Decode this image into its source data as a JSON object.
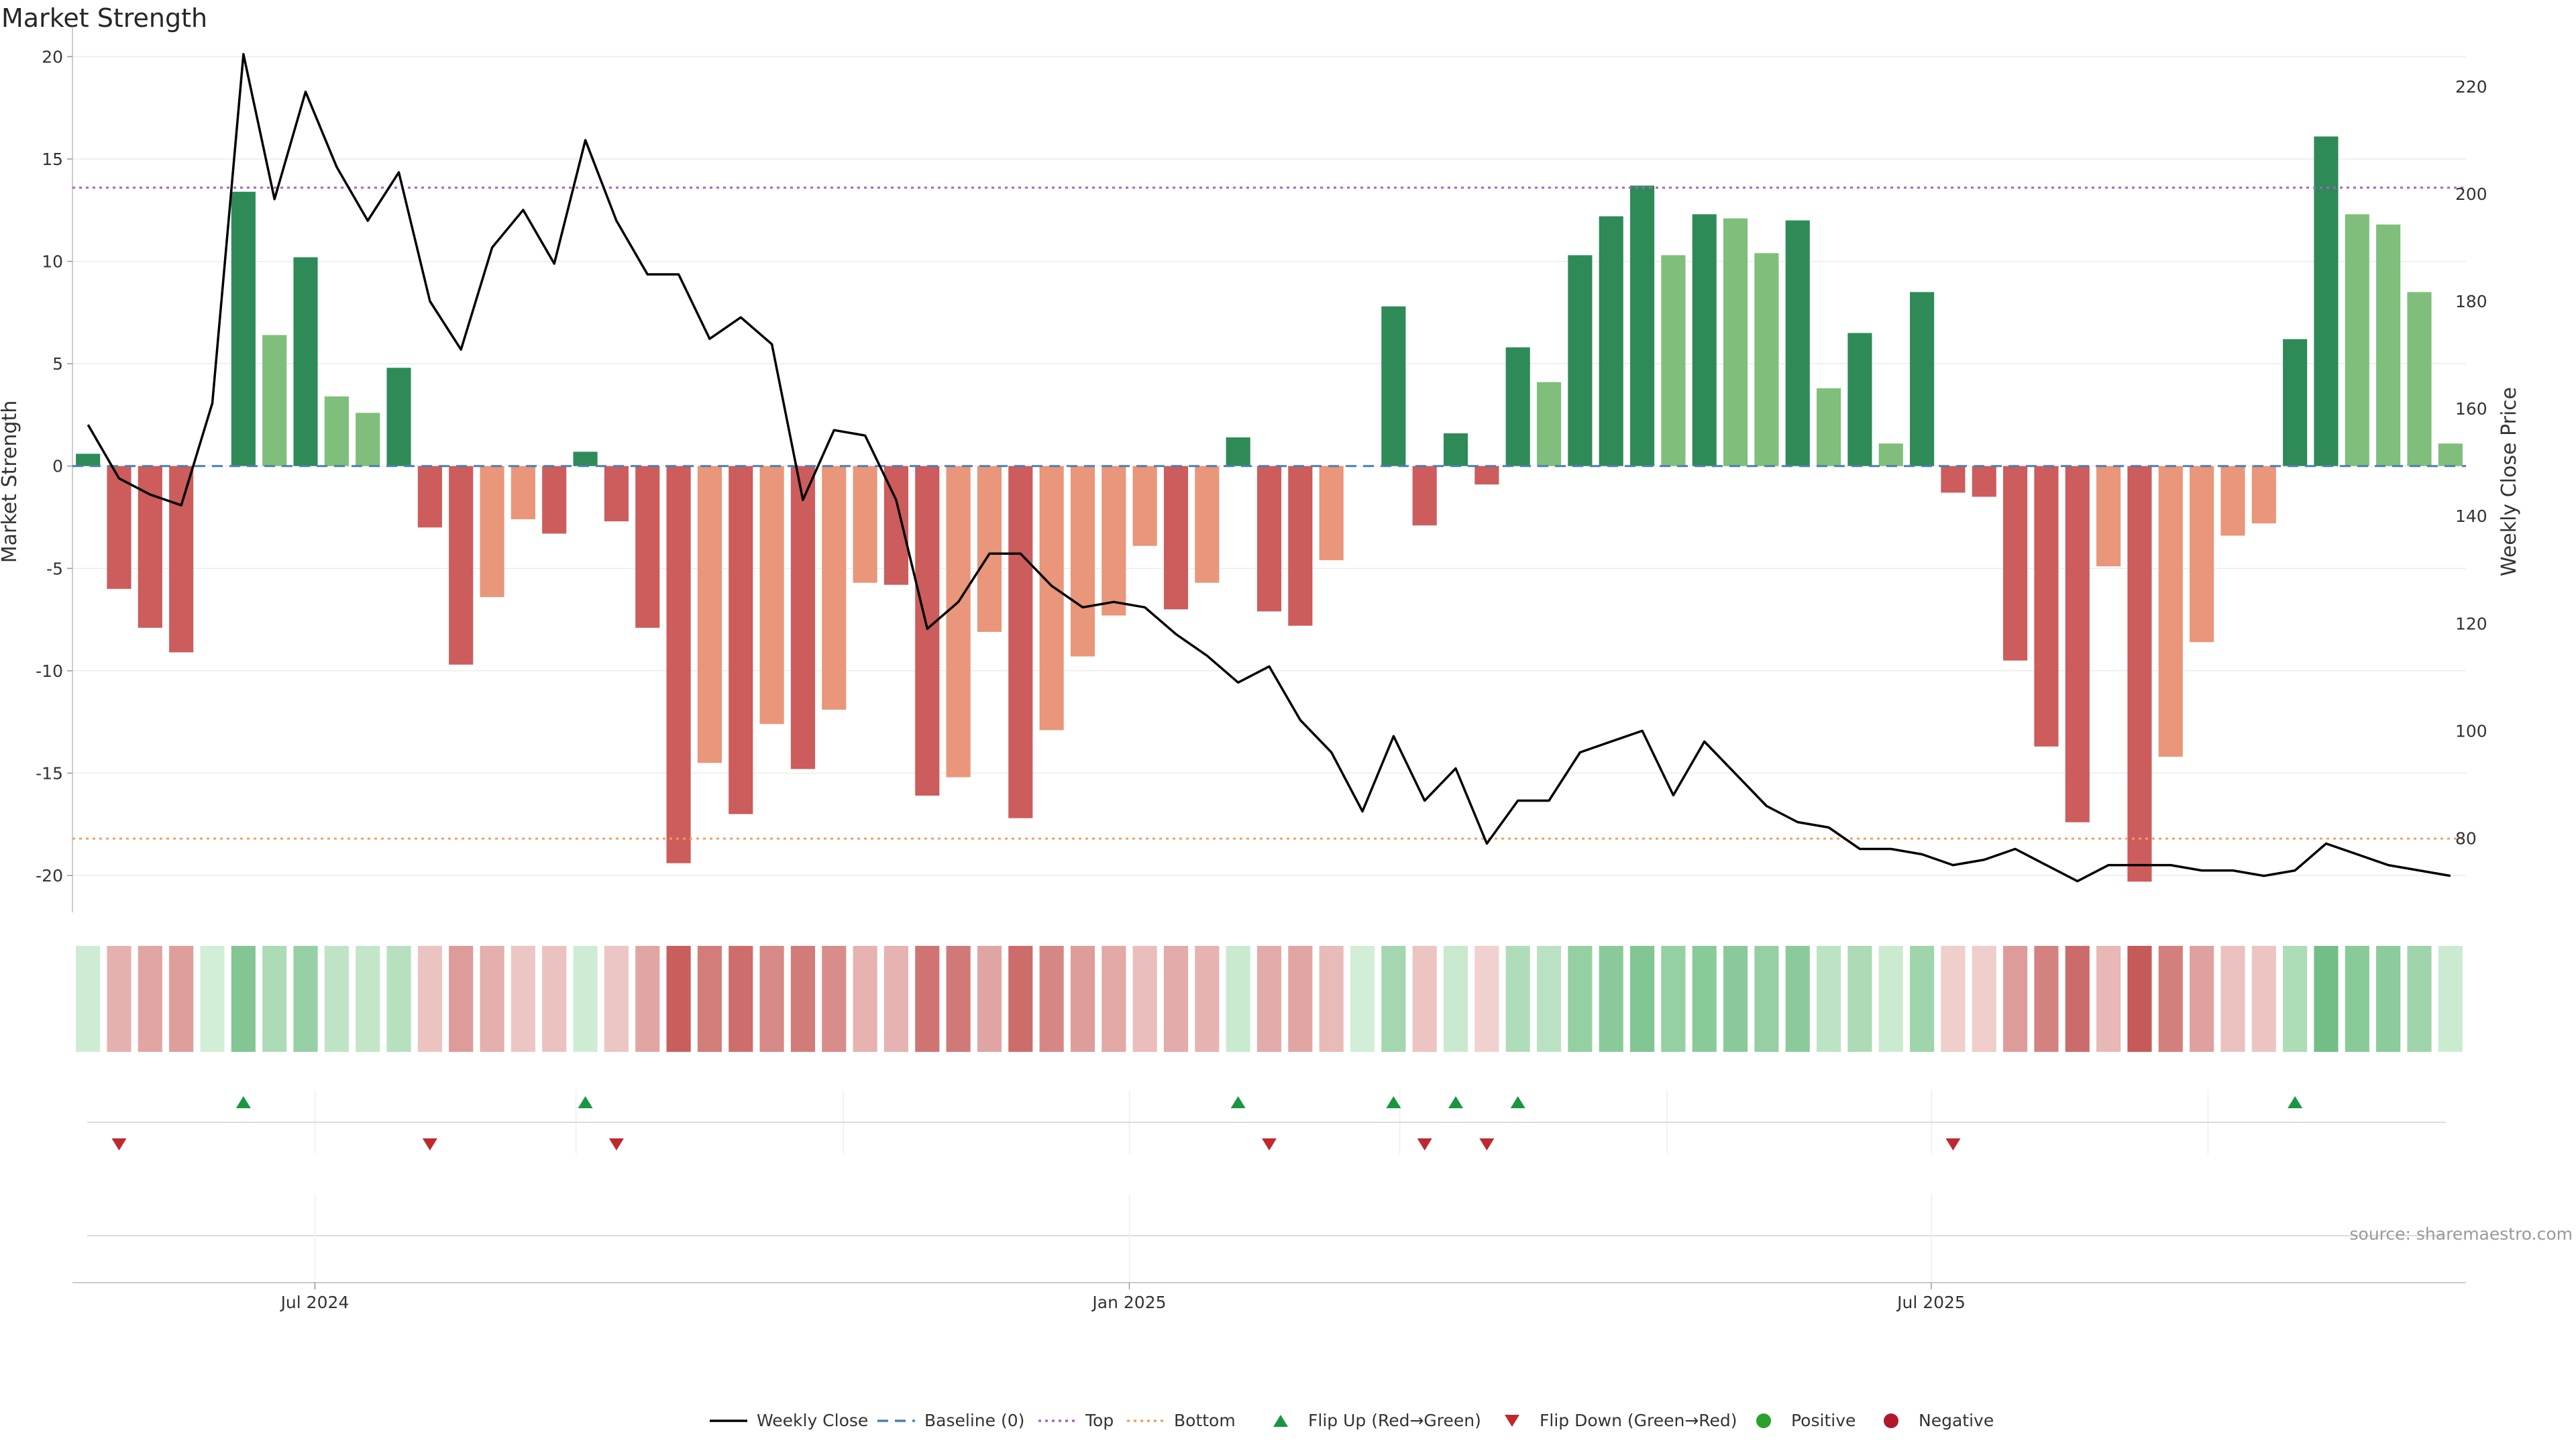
{
  "title": "Market Strength",
  "source_note": "source: sharemaestro.com",
  "chart_data": {
    "type": "bar",
    "ylabel_left": "Market Strength",
    "ylabel_right": "Weekly Close Price",
    "ylim_left": [
      -21.8,
      20.8
    ],
    "ylim_right": [
      66.2,
      228.6
    ],
    "yticks_left": [
      20,
      15,
      10,
      5,
      0,
      -5,
      -10,
      -15,
      -20
    ],
    "yticks_right": [
      220,
      200,
      180,
      160,
      140,
      120,
      100,
      80
    ],
    "x_ticks": [
      "Jul 2024",
      "Jan 2025",
      "Jul 2025"
    ],
    "x_tick_week_index": [
      7.3,
      33.5,
      59.3
    ],
    "top_level": 13.6,
    "bottom_level": -18.2,
    "strength_values": [
      0.6,
      -6.0,
      -7.9,
      -9.1,
      0.0,
      13.4,
      6.4,
      10.2,
      3.4,
      2.6,
      4.8,
      -3.0,
      -9.7,
      -6.4,
      -2.6,
      -3.3,
      0.7,
      -2.7,
      -7.9,
      -19.4,
      -14.5,
      -17.0,
      -12.6,
      -14.8,
      -11.9,
      -5.7,
      -5.8,
      -16.1,
      -15.2,
      -8.1,
      -17.2,
      -12.9,
      -9.3,
      -7.3,
      -3.9,
      -7.0,
      -5.7,
      1.4,
      -7.1,
      -7.8,
      -4.6,
      0.0,
      7.8,
      -2.9,
      1.6,
      -0.9,
      5.8,
      4.1,
      10.3,
      12.2,
      13.7,
      10.3,
      12.3,
      12.1,
      10.4,
      12.0,
      3.8,
      6.5,
      1.1,
      8.5,
      -1.3,
      -1.5,
      -9.5,
      -13.7,
      -17.4,
      -4.9,
      -20.3,
      -14.2,
      -8.6,
      -3.4,
      -2.8,
      6.2,
      16.1,
      12.3,
      11.8,
      8.5,
      1.1
    ],
    "weekly_close": [
      157,
      147,
      144,
      142,
      161,
      226,
      199,
      219,
      205,
      195,
      204,
      180,
      171,
      190,
      197,
      187,
      210,
      195,
      185,
      185,
      173,
      177,
      172,
      143,
      156,
      155,
      143,
      119,
      124,
      133,
      133,
      127,
      123,
      124,
      123,
      118,
      114,
      109,
      112,
      102,
      96,
      85,
      99,
      87,
      93,
      79,
      87,
      87,
      96,
      98,
      100,
      88,
      98,
      92,
      86,
      83,
      82,
      78,
      78,
      77,
      75,
      76,
      78,
      75,
      72,
      75,
      75,
      75,
      74,
      74,
      73,
      74,
      79,
      77,
      75,
      74,
      73
    ],
    "flip_up_weeks": [
      5,
      16,
      37,
      42,
      44,
      46,
      71
    ],
    "flip_down_weeks": [
      1,
      11,
      17,
      38,
      43,
      45,
      60
    ],
    "colors": {
      "strong_positive": "#2e8b57",
      "weak_positive": "#7fbf7b",
      "strong_negative": "#cd5c5c",
      "weak_negative": "#e9967a",
      "top_line": "#b05cc8",
      "bottom_line": "#f0a060",
      "baseline": "#4a7fb5",
      "flip_up": "#1a9641",
      "flip_down": "#c0282d",
      "positive_dot": "#2ca02c",
      "negative_dot": "#b2182b",
      "close_line": "#000000"
    },
    "legend": [
      {
        "label": "Weekly Close",
        "kind": "line-solid",
        "color": "#000000"
      },
      {
        "label": "Baseline (0)",
        "kind": "line-dash",
        "color": "#4a7fb5"
      },
      {
        "label": "Top",
        "kind": "line-dot",
        "color": "#b05cc8"
      },
      {
        "label": "Bottom",
        "kind": "line-dot",
        "color": "#f0a060"
      },
      {
        "label": "Flip Up (Red→Green)",
        "kind": "tri-up",
        "color": "#1a9641"
      },
      {
        "label": "Flip Down (Green→Red)",
        "kind": "tri-down",
        "color": "#c0282d"
      },
      {
        "label": "Positive",
        "kind": "dot",
        "color": "#2ca02c"
      },
      {
        "label": "Negative",
        "kind": "dot",
        "color": "#b2182b"
      }
    ]
  }
}
